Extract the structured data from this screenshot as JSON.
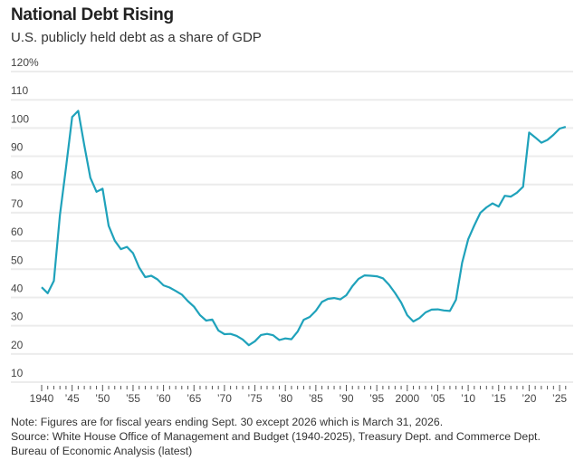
{
  "chart_data": {
    "type": "line",
    "title": "National Debt Rising",
    "subtitle": "U.S. publicly held debt as a share of GDP",
    "xlabel": "",
    "ylabel": "",
    "ylim": [
      10,
      120
    ],
    "xlim": [
      1940,
      2026
    ],
    "grid": true,
    "y_ticks": [
      10,
      20,
      30,
      40,
      50,
      60,
      70,
      80,
      90,
      100,
      110,
      120
    ],
    "y_tick_labels": [
      "10",
      "20",
      "30",
      "40",
      "50",
      "60",
      "70",
      "80",
      "90",
      "100",
      "110",
      "120%"
    ],
    "x_ticks": [
      1940,
      1945,
      1950,
      1955,
      1960,
      1965,
      1970,
      1975,
      1980,
      1985,
      1990,
      1995,
      2000,
      2005,
      2010,
      2015,
      2020,
      2025
    ],
    "x_tick_labels": [
      "1940",
      "’45",
      "’50",
      "’55",
      "’60",
      "’65",
      "’70",
      "’75",
      "’80",
      "’85",
      "’90",
      "’95",
      "2000",
      "’05",
      "’10",
      "’15",
      "’20",
      "’25"
    ],
    "series": [
      {
        "name": "Debt held by public, % of GDP",
        "color": "#1fa2bb",
        "x": [
          1940,
          1941,
          1942,
          1943,
          1944,
          1945,
          1946,
          1947,
          1948,
          1949,
          1950,
          1951,
          1952,
          1953,
          1954,
          1955,
          1956,
          1957,
          1958,
          1959,
          1960,
          1961,
          1962,
          1963,
          1964,
          1965,
          1966,
          1967,
          1968,
          1969,
          1970,
          1971,
          1972,
          1973,
          1974,
          1975,
          1976,
          1977,
          1978,
          1979,
          1980,
          1981,
          1982,
          1983,
          1984,
          1985,
          1986,
          1987,
          1988,
          1989,
          1990,
          1991,
          1992,
          1993,
          1994,
          1995,
          1996,
          1997,
          1998,
          1999,
          2000,
          2001,
          2002,
          2003,
          2004,
          2005,
          2006,
          2007,
          2008,
          2009,
          2010,
          2011,
          2012,
          2013,
          2014,
          2015,
          2016,
          2017,
          2018,
          2019,
          2020,
          2021,
          2022,
          2023,
          2024,
          2025,
          2026
        ],
        "values": [
          43.6,
          41.5,
          45.9,
          69.2,
          86.0,
          103.9,
          106.1,
          93.9,
          82.4,
          77.4,
          78.5,
          65.4,
          60.1,
          57.1,
          57.9,
          55.7,
          50.6,
          47.2,
          47.7,
          46.4,
          44.3,
          43.5,
          42.3,
          41.0,
          38.7,
          36.7,
          33.7,
          31.8,
          32.2,
          28.3,
          27.0,
          27.1,
          26.4,
          25.1,
          23.1,
          24.5,
          26.7,
          27.1,
          26.6,
          24.9,
          25.5,
          25.2,
          27.9,
          32.1,
          33.1,
          35.3,
          38.4,
          39.5,
          39.8,
          39.3,
          40.8,
          44.0,
          46.6,
          47.8,
          47.7,
          47.5,
          46.8,
          44.5,
          41.6,
          38.2,
          33.7,
          31.5,
          32.7,
          34.7,
          35.7,
          35.8,
          35.4,
          35.2,
          39.2,
          52.3,
          60.6,
          65.5,
          70.0,
          71.9,
          73.3,
          72.2,
          76.0,
          75.7,
          77.1,
          79.2,
          98.4,
          96.7,
          94.8,
          95.8,
          97.6,
          99.8,
          100.4
        ]
      }
    ]
  },
  "notes": {
    "note": "Note: Figures are for fiscal years ending Sept. 30 except 2026 which is March 31, 2026.",
    "source": "Source: White House Office of Management and Budget (1940-2025), Treasury Dept. and Commerce Dept. Bureau of Economic Analysis (latest)"
  }
}
